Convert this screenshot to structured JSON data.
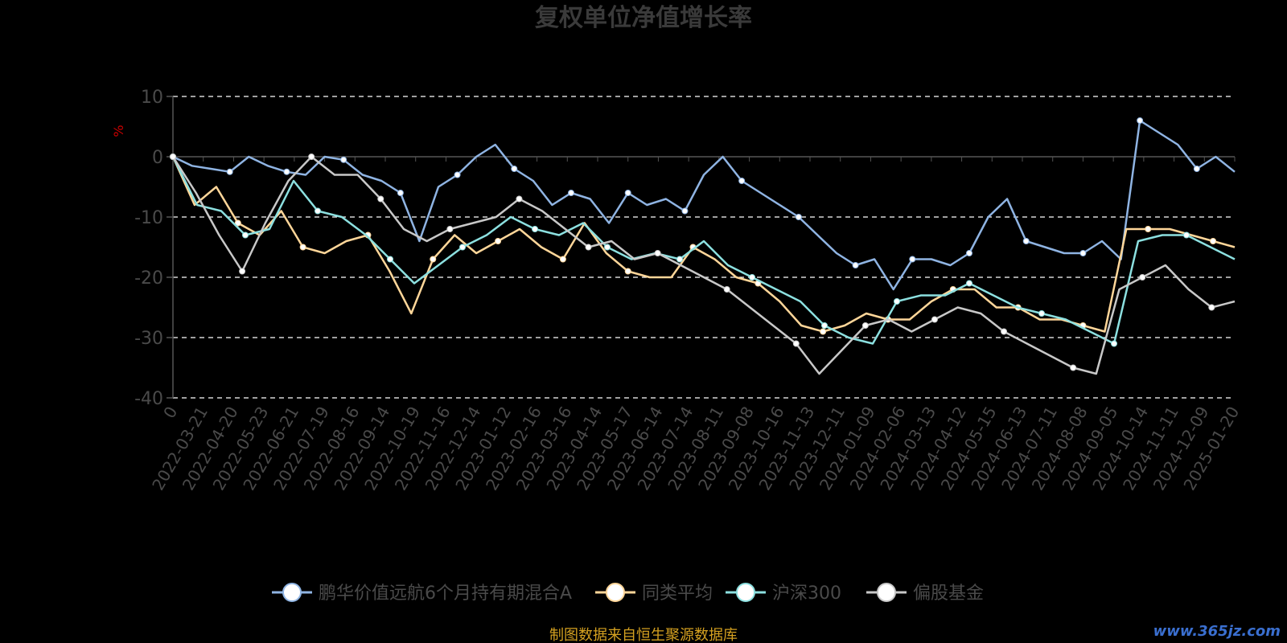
{
  "source_note": "制图数据来自恒生聚源数据库",
  "watermark": "www.365jz.com",
  "chart_data": {
    "type": "line",
    "title": "复权单位净值增长率",
    "ylabel": "%",
    "xlabel": "",
    "ylim": [
      -40,
      10
    ],
    "yticks": [
      10,
      0,
      -10,
      -20,
      -30,
      -40
    ],
    "grid": true,
    "legend_position": "bottom-center",
    "x_tick_labels": [
      "0",
      "2022-03-21",
      "2022-04-20",
      "2022-05-23",
      "2022-06-21",
      "2022-07-19",
      "2022-08-16",
      "2022-09-14",
      "2022-10-19",
      "2022-11-16",
      "2022-12-14",
      "2023-01-12",
      "2023-02-16",
      "2023-03-16",
      "2023-04-14",
      "2023-05-17",
      "2023-06-14",
      "2023-07-14",
      "2023-08-11",
      "2023-09-08",
      "2023-10-16",
      "2023-11-13",
      "2023-12-11",
      "2024-01-09",
      "2024-02-06",
      "2024-03-13",
      "2024-04-12",
      "2024-05-15",
      "2024-06-13",
      "2024-07-11",
      "2024-08-08",
      "2024-09-05",
      "2024-10-14",
      "2024-11-11",
      "2024-12-09",
      "2025-01-20"
    ],
    "series": [
      {
        "name": "鹏华价值远航6个月持有期混合A",
        "color": "#8fb4e3",
        "values": [
          0,
          -1.5,
          -2,
          -2.5,
          0,
          -1.5,
          -2.5,
          -3,
          0,
          -0.5,
          -3,
          -4,
          -6,
          -14,
          -5,
          -3,
          0,
          2,
          -2,
          -4,
          -8,
          -6,
          -7,
          -11,
          -6,
          -8,
          -7,
          -9,
          -3,
          0,
          -4,
          -6,
          -8,
          -10,
          -13,
          -16,
          -18,
          -17,
          -22,
          -17,
          -17,
          -18,
          -16,
          -10,
          -7,
          -14,
          -15,
          -16,
          -16,
          -14,
          -17,
          6,
          4,
          2,
          -2,
          0,
          -2.5
        ]
      },
      {
        "name": "同类平均",
        "color": "#ffd699",
        "values": [
          0,
          -8,
          -5,
          -11,
          -13,
          -9,
          -15,
          -16,
          -14,
          -13,
          -19,
          -26,
          -17,
          -13,
          -16,
          -14,
          -12,
          -15,
          -17,
          -11,
          -16,
          -19,
          -20,
          -20,
          -15,
          -17,
          -20,
          -21,
          -24,
          -28,
          -29,
          -28,
          -26,
          -27,
          -27,
          -24,
          -22,
          -22,
          -25,
          -25,
          -27,
          -27,
          -28,
          -29,
          -12,
          -12,
          -12,
          -13,
          -14,
          -15
        ]
      },
      {
        "name": "沪深300",
        "color": "#8ce0e0",
        "values": [
          0,
          -8,
          -9,
          -13,
          -12,
          -4,
          -9,
          -10,
          -13,
          -17,
          -21,
          -18,
          -15,
          -13,
          -10,
          -12,
          -13,
          -11,
          -15,
          -17,
          -16,
          -17,
          -14,
          -18,
          -20,
          -22,
          -24,
          -28,
          -30,
          -31,
          -24,
          -23,
          -23,
          -21,
          -23,
          -25,
          -26,
          -27,
          -29,
          -31,
          -14,
          -13,
          -13,
          -15,
          -17
        ]
      },
      {
        "name": "偏股基金",
        "color": "#c8c8c8",
        "values": [
          0,
          -6,
          -13,
          -19,
          -11,
          -4,
          0,
          -3,
          -3,
          -7,
          -12,
          -14,
          -12,
          -11,
          -10,
          -7,
          -9,
          -12,
          -15,
          -14,
          -17,
          -16,
          -18,
          -20,
          -22,
          -25,
          -28,
          -31,
          -36,
          -32,
          -28,
          -27,
          -29,
          -27,
          -25,
          -26,
          -29,
          -31,
          -33,
          -35,
          -36,
          -22,
          -20,
          -18,
          -22,
          -25,
          -24
        ]
      }
    ]
  }
}
